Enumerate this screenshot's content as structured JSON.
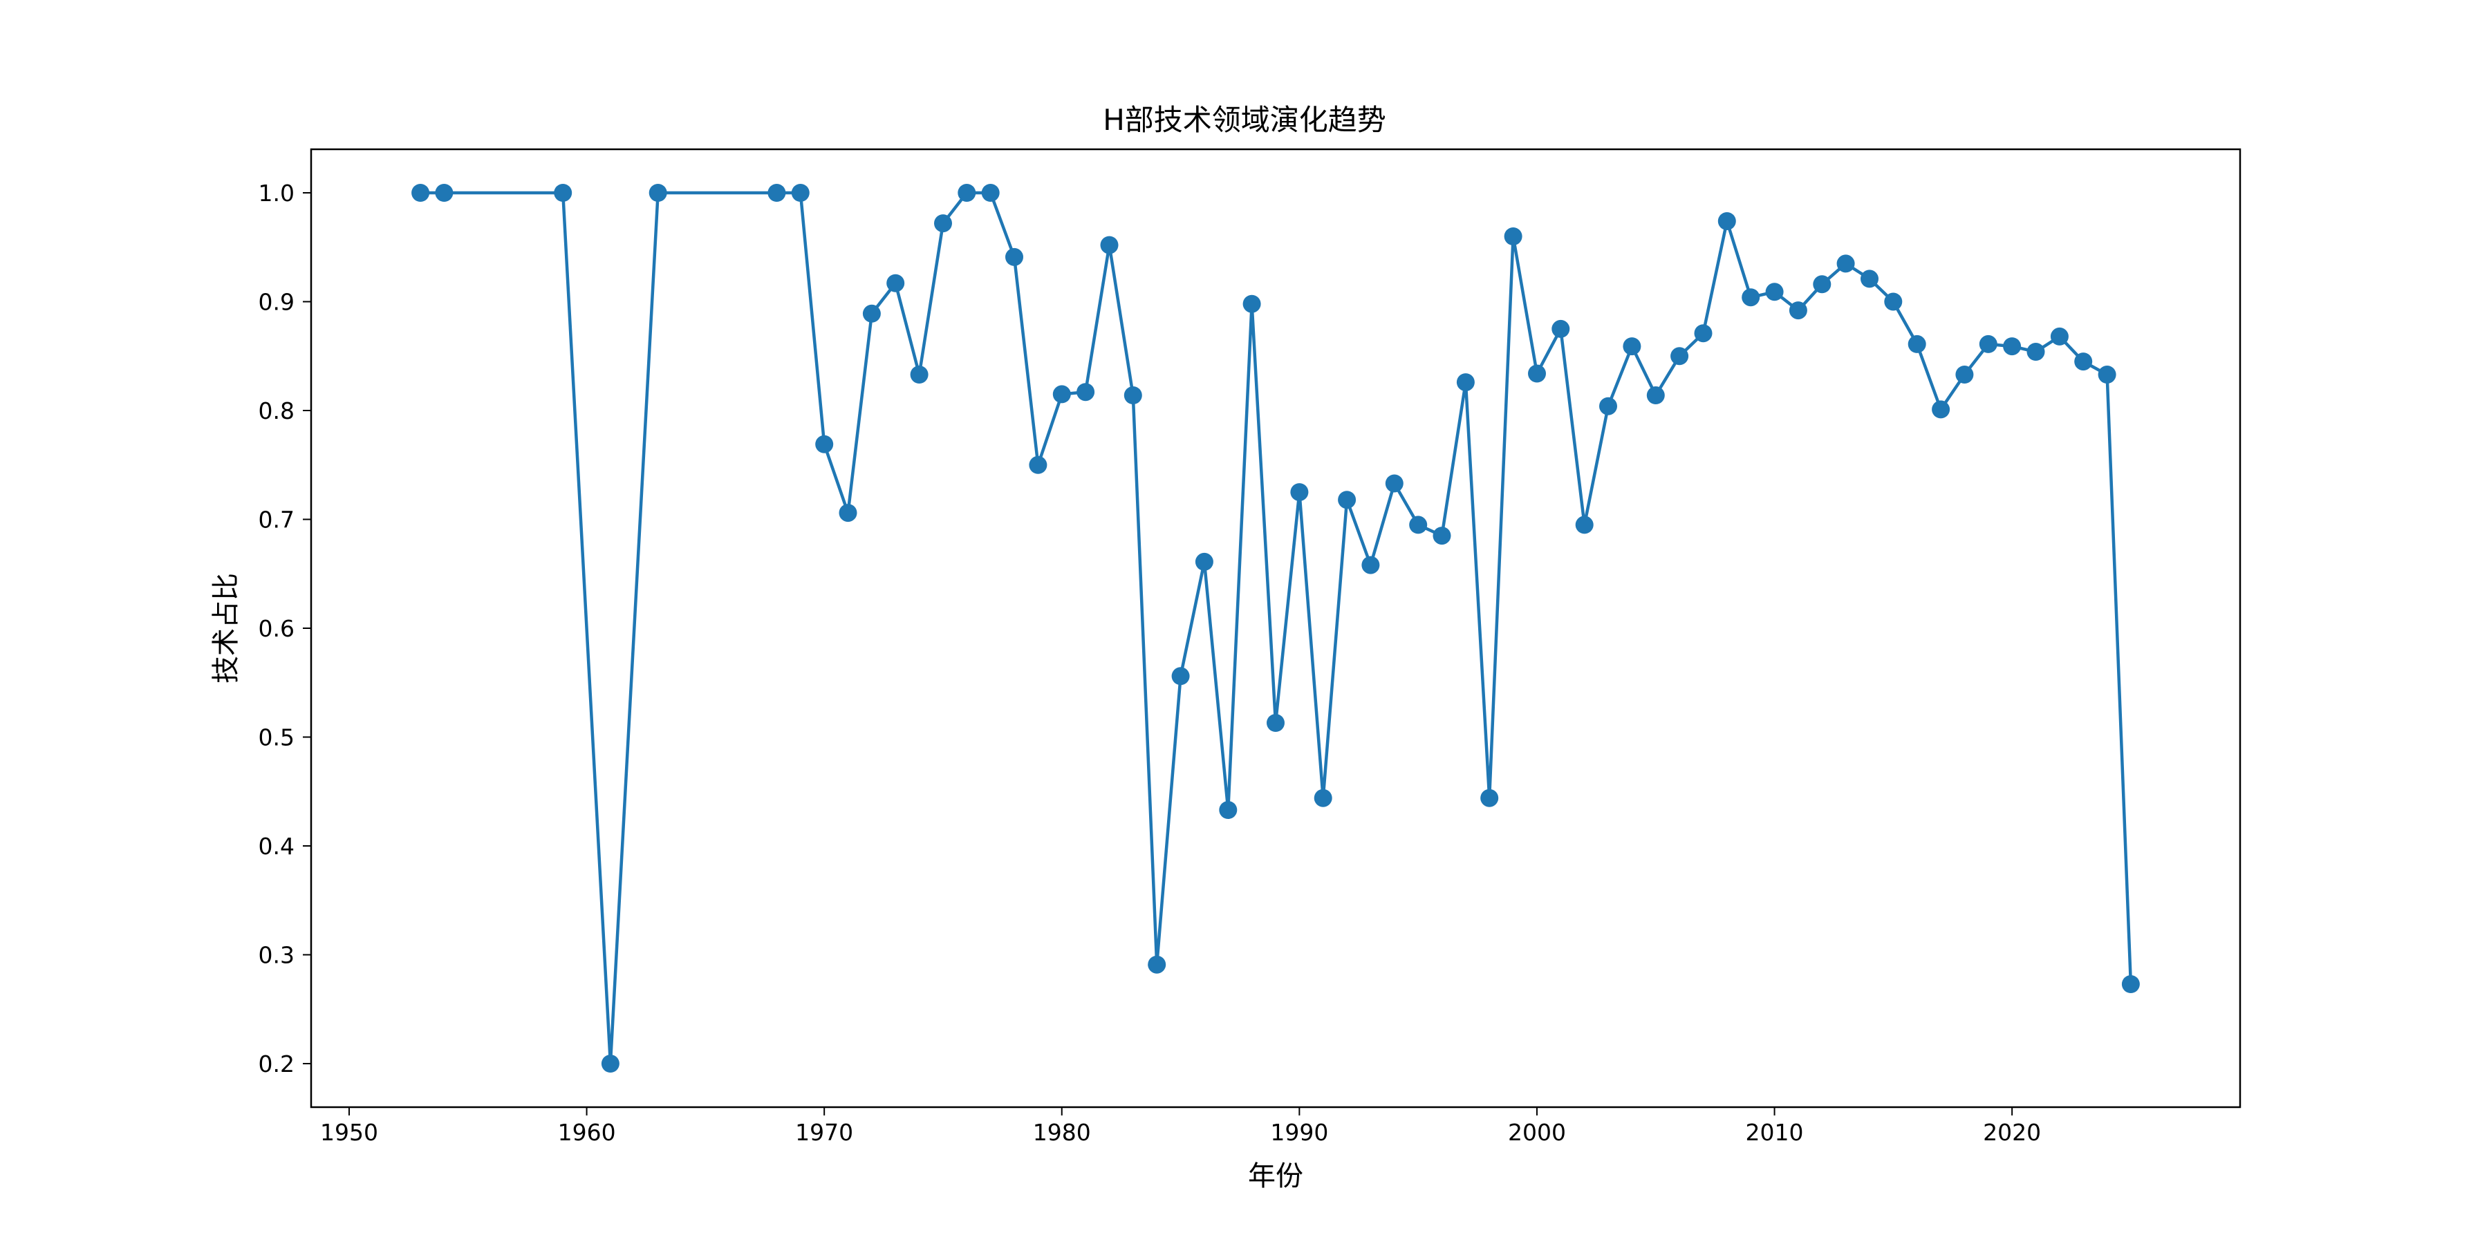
{
  "chart_data": {
    "type": "line",
    "title": "H部技术领域演化趋势",
    "xlabel": "年份",
    "ylabel": "技术占比",
    "xlim": [
      1948.4,
      2029.6
    ],
    "ylim": [
      0.16,
      1.04
    ],
    "xticks": [
      1950,
      1960,
      1970,
      1980,
      1990,
      2000,
      2010,
      2020
    ],
    "yticks": [
      0.2,
      0.3,
      0.4,
      0.5,
      0.6,
      0.7,
      0.8,
      0.9,
      1.0
    ],
    "grid": false,
    "color": "#1f77b4",
    "series": [
      {
        "x": [
          1953,
          1954,
          1959,
          1961,
          1963,
          1968,
          1969,
          1970,
          1971,
          1972,
          1973,
          1974,
          1975,
          1976,
          1977,
          1978,
          1979,
          1980,
          1981,
          1982,
          1983,
          1984,
          1985,
          1986,
          1987,
          1988,
          1989,
          1990,
          1991,
          1992,
          1993,
          1994,
          1995,
          1996,
          1997,
          1998,
          1999,
          2000,
          2001,
          2002,
          2003,
          2004,
          2005,
          2006,
          2007,
          2008,
          2009,
          2010,
          2011,
          2012,
          2013,
          2014,
          2015,
          2016,
          2017,
          2018,
          2019,
          2020,
          2021,
          2022,
          2023,
          2024,
          2025
        ],
        "y": [
          1.0,
          1.0,
          1.0,
          0.2,
          1.0,
          1.0,
          1.0,
          0.769,
          0.706,
          0.889,
          0.917,
          0.833,
          0.972,
          1.0,
          1.0,
          0.941,
          0.75,
          0.815,
          0.817,
          0.952,
          0.814,
          0.291,
          0.556,
          0.661,
          0.433,
          0.898,
          0.513,
          0.725,
          0.444,
          0.718,
          0.658,
          0.733,
          0.695,
          0.685,
          0.826,
          0.444,
          0.96,
          0.834,
          0.875,
          0.695,
          0.804,
          0.859,
          0.814,
          0.85,
          0.871,
          0.974,
          0.904,
          0.909,
          0.892,
          0.916,
          0.935,
          0.921,
          0.9,
          0.861,
          0.801,
          0.833,
          0.861,
          0.859,
          0.854,
          0.868,
          0.845,
          0.833,
          0.273
        ]
      }
    ]
  }
}
